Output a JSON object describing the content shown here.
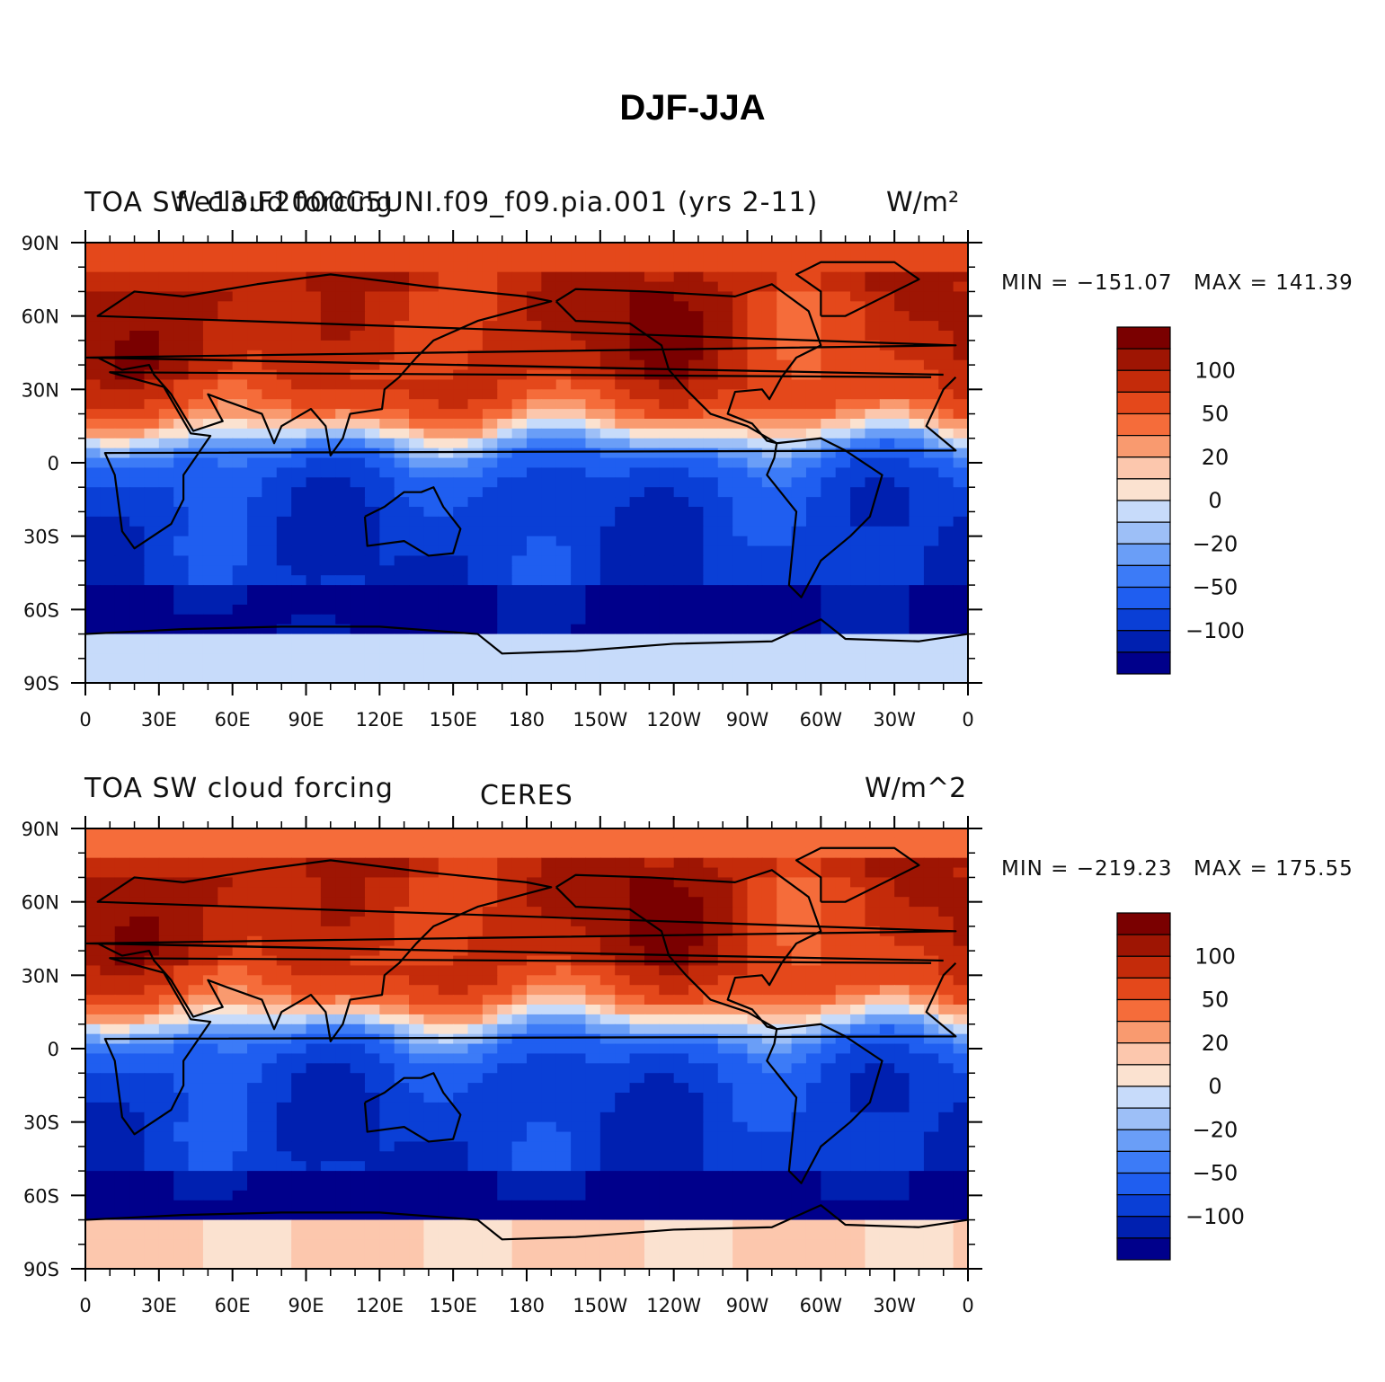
{
  "figure_title": "DJF-JJA",
  "chart_data": [
    {
      "type": "heatmap",
      "panel": "top",
      "title_left": "TOA SW cloud forcing",
      "title_center": "f.e13.F2000C5UNI.f09_f09.pia.001 (yrs 2-11)",
      "title_right": "W/m²",
      "min_label": "MIN = −151.07",
      "max_label": "MAX = 141.39",
      "min": -151.07,
      "max": 141.39,
      "x_tick_labels": [
        "0",
        "30E",
        "60E",
        "90E",
        "120E",
        "150E",
        "180",
        "150W",
        "120W",
        "90W",
        "60W",
        "30W",
        "0"
      ],
      "y_tick_labels": [
        "90N",
        "60N",
        "30N",
        "0",
        "30S",
        "60S",
        "90S"
      ],
      "xlim": [
        0,
        360
      ],
      "ylim": [
        -90,
        90
      ],
      "colorbar_labels": [
        "100",
        "50",
        "20",
        "0",
        "−20",
        "−50",
        "−100"
      ],
      "colorbar_levels": [
        -150,
        -125,
        -100,
        -75,
        -50,
        -35,
        -20,
        -10,
        0,
        10,
        20,
        35,
        50,
        75,
        100,
        125,
        150
      ]
    },
    {
      "type": "heatmap",
      "panel": "bottom",
      "title_left": "TOA SW cloud forcing",
      "title_center": "CERES",
      "title_right": "W/m^2",
      "min_label": "MIN = −219.23",
      "max_label": "MAX = 175.55",
      "min": -219.23,
      "max": 175.55,
      "x_tick_labels": [
        "0",
        "30E",
        "60E",
        "90E",
        "120E",
        "150E",
        "180",
        "150W",
        "120W",
        "90W",
        "60W",
        "30W",
        "0"
      ],
      "y_tick_labels": [
        "90N",
        "60N",
        "30N",
        "0",
        "30S",
        "60S",
        "90S"
      ],
      "xlim": [
        0,
        360
      ],
      "ylim": [
        -90,
        90
      ],
      "colorbar_labels": [
        "100",
        "50",
        "20",
        "0",
        "−20",
        "−50",
        "−100"
      ],
      "colorbar_levels": [
        -150,
        -125,
        -100,
        -75,
        -50,
        -35,
        -20,
        -10,
        0,
        10,
        20,
        35,
        50,
        75,
        100,
        125,
        150
      ]
    }
  ],
  "colors": {
    "palette": [
      "#00008b",
      "#0020b0",
      "#0a3fd6",
      "#1f5ef0",
      "#3c7bf7",
      "#6a9ef7",
      "#9dbff7",
      "#c7dbfa",
      "#fbe2d0",
      "#fcc7ad",
      "#f99a6f",
      "#f56c3a",
      "#e4481b",
      "#c42b0a",
      "#9e1503",
      "#7a0000"
    ],
    "land_outline": "#000000",
    "background": "#ffffff"
  }
}
